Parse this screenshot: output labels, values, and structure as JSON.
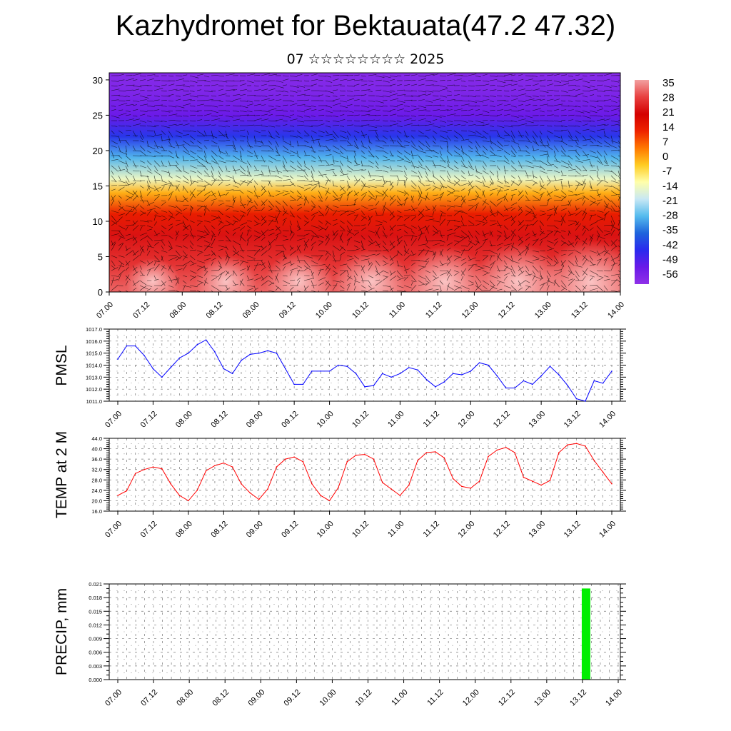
{
  "header": {
    "title": "Kazhydromet for Bektauata(47.2 47.32)",
    "subtitle": "07 ☆☆☆☆☆☆☆☆ 2025"
  },
  "colors": {
    "pmsl_line": "#0000ff",
    "temp_line": "#ff0000",
    "precip_bar": "#00ee00",
    "colorbar": [
      "#f2a0a0",
      "#e84040",
      "#d40000",
      "#ee2200",
      "#ff7700",
      "#ffcc22",
      "#ffffaa",
      "#c8e8f4",
      "#55bbee",
      "#1e64dc",
      "#2a2aee",
      "#6a1ae8",
      "#9030e8"
    ]
  },
  "chart_data": [
    {
      "type": "heatmap",
      "title": "",
      "xlabel": "",
      "ylabel": "",
      "x_tick_labels": [
        "07.00",
        "07.12",
        "08.00",
        "08.12",
        "09.00",
        "09.12",
        "10.00",
        "10.12",
        "11.00",
        "11.12",
        "12.00",
        "12.12",
        "13.00",
        "13.12",
        "14.00"
      ],
      "y_ticks": [
        0,
        5,
        10,
        15,
        20,
        25,
        30
      ],
      "ylim": [
        0,
        31
      ],
      "colorbar_labels": [
        "35",
        "28",
        "21",
        "14",
        "7",
        "0",
        "-7",
        "-14",
        "-21",
        "-28",
        "-35",
        "-42",
        "-49",
        "-56"
      ],
      "colorbar_range": [
        -60,
        38
      ],
      "profile": [
        {
          "level": 0,
          "value": 33
        },
        {
          "level": 4,
          "value": 28
        },
        {
          "level": 8,
          "value": 24
        },
        {
          "level": 11,
          "value": 15
        },
        {
          "level": 14,
          "value": 0
        },
        {
          "level": 16,
          "value": -14
        },
        {
          "level": 19,
          "value": -28
        },
        {
          "level": 22,
          "value": -42
        },
        {
          "level": 25,
          "value": -52
        },
        {
          "level": 28,
          "value": -56
        },
        {
          "level": 31,
          "value": -58
        }
      ],
      "wind_vectors": true
    },
    {
      "type": "line",
      "ylabel": "PMSL",
      "ylim": [
        1011.0,
        1017.0
      ],
      "y_tick_labels": [
        "1011.0",
        "1012.0",
        "1013.0",
        "1014.0",
        "1015.0",
        "1016.0",
        "1017.0"
      ],
      "x_tick_labels": [
        "07.00",
        "07.12",
        "08.00",
        "08.12",
        "09.00",
        "09.12",
        "10.00",
        "10.12",
        "11.00",
        "11.12",
        "12.00",
        "12.12",
        "13.00",
        "13.12",
        "14.00"
      ],
      "x_step_hours": 3,
      "series": [
        {
          "values": [
            1014.5,
            1015.6,
            1015.6,
            1014.8,
            1013.7,
            1013.0,
            1013.8,
            1014.6,
            1015.0,
            1015.7,
            1016.1,
            1015.1,
            1013.7,
            1013.3,
            1014.4,
            1014.9,
            1015.0,
            1015.2,
            1015.0,
            1013.7,
            1012.4,
            1012.4,
            1013.5,
            1013.5,
            1013.5,
            1014.0,
            1013.9,
            1013.3,
            1012.2,
            1012.3,
            1013.3,
            1013.0,
            1013.3,
            1013.8,
            1013.6,
            1012.8,
            1012.2,
            1012.6,
            1013.3,
            1013.2,
            1013.5,
            1014.2,
            1014.0,
            1013.1,
            1012.1,
            1012.1,
            1012.7,
            1012.4,
            1013.1,
            1013.9,
            1013.2,
            1012.3,
            1011.2,
            1011.0,
            1012.7,
            1012.5,
            1013.5
          ]
        }
      ]
    },
    {
      "type": "line",
      "ylabel": "TEMP at 2 M",
      "ylim": [
        16.0,
        44.0
      ],
      "y_tick_labels": [
        "16.0",
        "20.0",
        "24.0",
        "28.0",
        "32.0",
        "36.0",
        "40.0",
        "44.0"
      ],
      "x_tick_labels": [
        "07.00",
        "07.12",
        "08.00",
        "08.12",
        "09.00",
        "09.12",
        "10.00",
        "10.12",
        "11.00",
        "11.12",
        "12.00",
        "12.12",
        "13.00",
        "13.12",
        "14.00"
      ],
      "x_step_hours": 3,
      "series": [
        {
          "values": [
            22.0,
            23.8,
            30.5,
            32.0,
            33.0,
            32.3,
            26.5,
            22.0,
            20.0,
            24.0,
            31.5,
            33.5,
            34.5,
            33.0,
            26.5,
            23.0,
            20.5,
            24.5,
            33.0,
            36.0,
            36.8,
            35.0,
            26.5,
            22.0,
            20.0,
            25.0,
            35.0,
            37.5,
            37.8,
            36.0,
            27.0,
            24.5,
            22.0,
            26.0,
            35.5,
            38.5,
            38.8,
            36.5,
            28.5,
            25.5,
            24.8,
            27.5,
            37.0,
            39.5,
            40.5,
            38.5,
            29.0,
            27.5,
            26.0,
            27.8,
            38.5,
            41.5,
            42.0,
            41.0,
            35.5,
            31.0,
            26.5
          ]
        }
      ]
    },
    {
      "type": "bar",
      "ylabel": "PRECIP, mm",
      "ylim": [
        0.0,
        0.021
      ],
      "y_tick_labels": [
        "0.000",
        "0.003",
        "0.006",
        "0.009",
        "0.012",
        "0.015",
        "0.018",
        "0.021"
      ],
      "x_tick_labels": [
        "07.00",
        "07.12",
        "08.00",
        "08.12",
        "09.00",
        "09.12",
        "10.00",
        "10.12",
        "11.00",
        "11.12",
        "12.00",
        "12.12",
        "13.00",
        "13.12",
        "14.00"
      ],
      "bars": [
        {
          "x": "13.12",
          "value": 0.02
        }
      ]
    }
  ]
}
